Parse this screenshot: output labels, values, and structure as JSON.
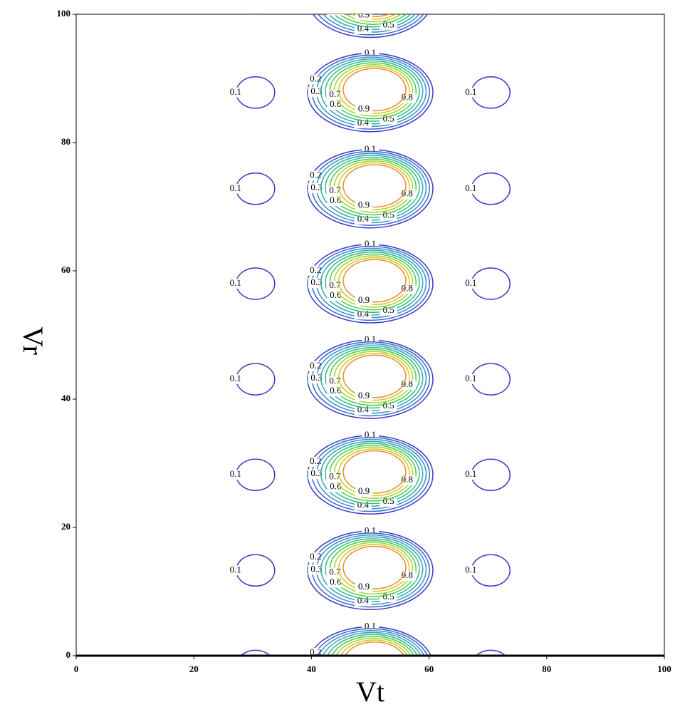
{
  "chart_data": {
    "type": "contour",
    "x_label": "Vt",
    "y_label": "Vr",
    "xlim": [
      0,
      100
    ],
    "ylim": [
      0,
      100
    ],
    "xticks": [
      0,
      20,
      40,
      60,
      80,
      100
    ],
    "yticks": [
      0,
      20,
      40,
      60,
      80,
      100
    ],
    "levels": [
      0.1,
      0.2,
      0.3,
      0.4,
      0.5,
      0.6,
      0.7,
      0.8,
      0.9
    ],
    "colors": [
      "#3a3ac8",
      "#3a66c8",
      "#3a90c8",
      "#30a8b0",
      "#30b888",
      "#50c850",
      "#9ad830",
      "#d0c820",
      "#f08a30"
    ],
    "peaks": {
      "x": [
        50,
        50,
        50,
        50,
        50,
        50,
        50,
        50
      ],
      "y": [
        102.5,
        87.8,
        72.8,
        58,
        43.1,
        28.2,
        13.3,
        -1.6
      ]
    },
    "side_peaks": {
      "x": [
        30,
        70
      ],
      "level_index": 0
    }
  }
}
